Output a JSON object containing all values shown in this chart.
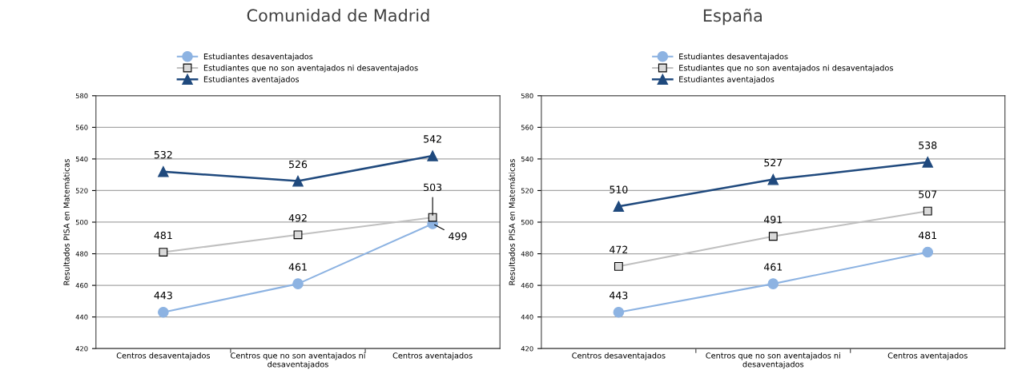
{
  "chart_data": [
    {
      "type": "line",
      "title": "Comunidad de Madrid",
      "ylabel": "Resultados PISA en Matemáticas",
      "categories": [
        "Centros desaventajados",
        "Centros que no son aventajados ni\ndesaventajados",
        "Centros aventajados"
      ],
      "series": [
        {
          "name": "Estudiantes desaventajados",
          "color": "#8db3e2",
          "marker": "circle",
          "values": [
            443,
            461,
            499
          ]
        },
        {
          "name": "Estudiantes que no son aventajados ni desaventajados",
          "color": "#c0c0c0",
          "marker": "square",
          "values": [
            481,
            492,
            503
          ]
        },
        {
          "name": "Estudiantes aventajados",
          "color": "#1f497d",
          "marker": "triangle",
          "values": [
            532,
            526,
            542
          ]
        }
      ],
      "ylim": [
        420,
        580
      ],
      "yticks": [
        420,
        440,
        460,
        480,
        500,
        520,
        540,
        560,
        580
      ],
      "grid": "y",
      "legend": "top",
      "data_labels": true
    },
    {
      "type": "line",
      "title": "España",
      "ylabel": "Resultados PISA en Matemáticas",
      "categories": [
        "Centros desaventajados",
        "Centros que no son aventajados ni\ndesaventajados",
        "Centros aventajados"
      ],
      "series": [
        {
          "name": "Estudiantes desaventajados",
          "color": "#8db3e2",
          "marker": "circle",
          "values": [
            443,
            461,
            481
          ]
        },
        {
          "name": "Estudiantes que no son aventajados ni desaventajados",
          "color": "#c0c0c0",
          "marker": "square",
          "values": [
            472,
            491,
            507
          ]
        },
        {
          "name": "Estudiantes aventajados",
          "color": "#1f497d",
          "marker": "triangle",
          "values": [
            510,
            527,
            538
          ]
        }
      ],
      "ylim": [
        420,
        580
      ],
      "yticks": [
        420,
        440,
        460,
        480,
        500,
        520,
        540,
        560,
        580
      ],
      "grid": "y",
      "legend": "top",
      "data_labels": true
    }
  ]
}
